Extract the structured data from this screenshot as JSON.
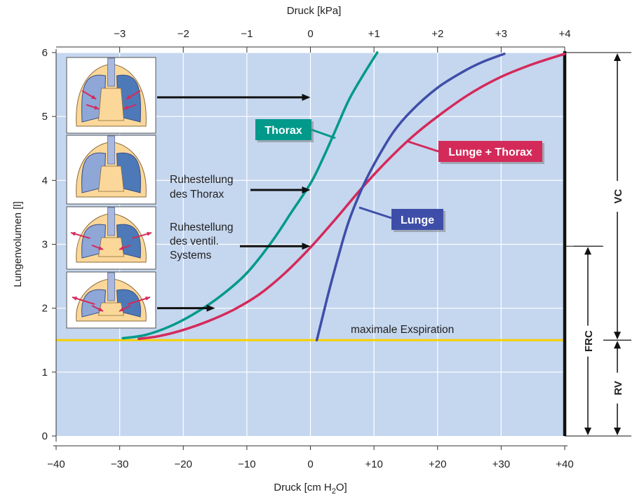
{
  "chart_data": {
    "type": "line",
    "title": "",
    "x_bottom": {
      "label": "Druck [cm H2O]",
      "label_main": "Druck [cm H",
      "label_sub": "2",
      "label_end": "O]",
      "range": [
        -40,
        40
      ],
      "ticks": [
        "−40",
        "−30",
        "−20",
        "−10",
        "0",
        "+10",
        "+20",
        "+30",
        "+40"
      ]
    },
    "x_top": {
      "label": "Druck [kPa]",
      "range": [
        -4,
        4
      ],
      "ticks": [
        "−3",
        "−2",
        "−1",
        "0",
        "+1",
        "+2",
        "+3",
        "+4"
      ]
    },
    "y": {
      "label": "Lungenvolumen [l]",
      "range": [
        0,
        6
      ],
      "ticks": [
        "0",
        "1",
        "2",
        "3",
        "4",
        "5",
        "6"
      ]
    },
    "grid": true,
    "background": "#c5d6ef",
    "series": [
      {
        "name": "Thorax",
        "color": "#00998a",
        "points": [
          [
            -29.5,
            1.53
          ],
          [
            -26,
            1.58
          ],
          [
            -22,
            1.72
          ],
          [
            -18,
            1.93
          ],
          [
            -14,
            2.2
          ],
          [
            -10,
            2.55
          ],
          [
            -6,
            3.05
          ],
          [
            -3,
            3.5
          ],
          [
            0,
            3.95
          ],
          [
            2,
            4.35
          ],
          [
            4,
            4.8
          ],
          [
            6,
            5.25
          ],
          [
            8,
            5.6
          ],
          [
            10.5,
            6.0
          ]
        ]
      },
      {
        "name": "Lunge + Thorax",
        "color": "#d42a5a",
        "points": [
          [
            -27,
            1.52
          ],
          [
            -24,
            1.56
          ],
          [
            -20,
            1.66
          ],
          [
            -16,
            1.8
          ],
          [
            -12,
            1.98
          ],
          [
            -8,
            2.22
          ],
          [
            -4,
            2.55
          ],
          [
            0,
            2.95
          ],
          [
            4,
            3.4
          ],
          [
            8,
            3.87
          ],
          [
            12,
            4.3
          ],
          [
            16,
            4.68
          ],
          [
            20,
            5.0
          ],
          [
            25,
            5.35
          ],
          [
            30,
            5.62
          ],
          [
            35,
            5.82
          ],
          [
            40,
            5.98
          ]
        ]
      },
      {
        "name": "Lunge",
        "color": "#3e4ea8",
        "points": [
          [
            1,
            1.5
          ],
          [
            2,
            1.9
          ],
          [
            3,
            2.3
          ],
          [
            4.5,
            2.85
          ],
          [
            6,
            3.35
          ],
          [
            8,
            3.85
          ],
          [
            10,
            4.25
          ],
          [
            13,
            4.75
          ],
          [
            16,
            5.1
          ],
          [
            20,
            5.45
          ],
          [
            24,
            5.7
          ],
          [
            27,
            5.85
          ],
          [
            30.5,
            5.98
          ]
        ]
      }
    ],
    "reference_lines": [
      {
        "name": "maximale Exspiration",
        "y": 1.5,
        "color": "#f5d000"
      },
      {
        "name": "max-pressure-bar",
        "x": 40,
        "color": "#111111"
      }
    ],
    "series_labels": [
      {
        "text": "Thorax",
        "color": "#00998a"
      },
      {
        "text": "Lunge + Thorax",
        "color": "#d42a5a"
      },
      {
        "text": "Lunge",
        "color": "#3e4ea8"
      }
    ],
    "annotations": [
      {
        "lines": [
          "Ruhestellung",
          "des Thorax"
        ],
        "target_volume": 3.85
      },
      {
        "lines": [
          "Ruhestellung",
          "des ventil.",
          "Systems"
        ],
        "target_volume": 2.97
      },
      {
        "lines": [
          "maximale Exspiration"
        ]
      }
    ],
    "volume_brackets": [
      {
        "label": "VC",
        "from": 1.5,
        "to": 6.0
      },
      {
        "label": "FRC",
        "from": 0,
        "to": 2.97
      },
      {
        "label": "RV",
        "from": 0,
        "to": 1.5
      }
    ],
    "thumbnails": [
      {
        "name": "lung-inward-arrows",
        "arrow_volume": 5.3
      },
      {
        "name": "lung-rest",
        "arrow_volume": null
      },
      {
        "name": "lung-outward-arrows",
        "arrow_volume": null
      },
      {
        "name": "lung-mixed-arrows",
        "arrow_volume": 2.0
      }
    ]
  },
  "colors": {
    "plot_bg": "#c5d6ef",
    "grid": "#ffffff",
    "lung_tissue": "#fbd89a",
    "lung_fill": "#8fa7d6",
    "lung_dark": "#4d79b8",
    "arrow_red": "#d42a5a"
  }
}
